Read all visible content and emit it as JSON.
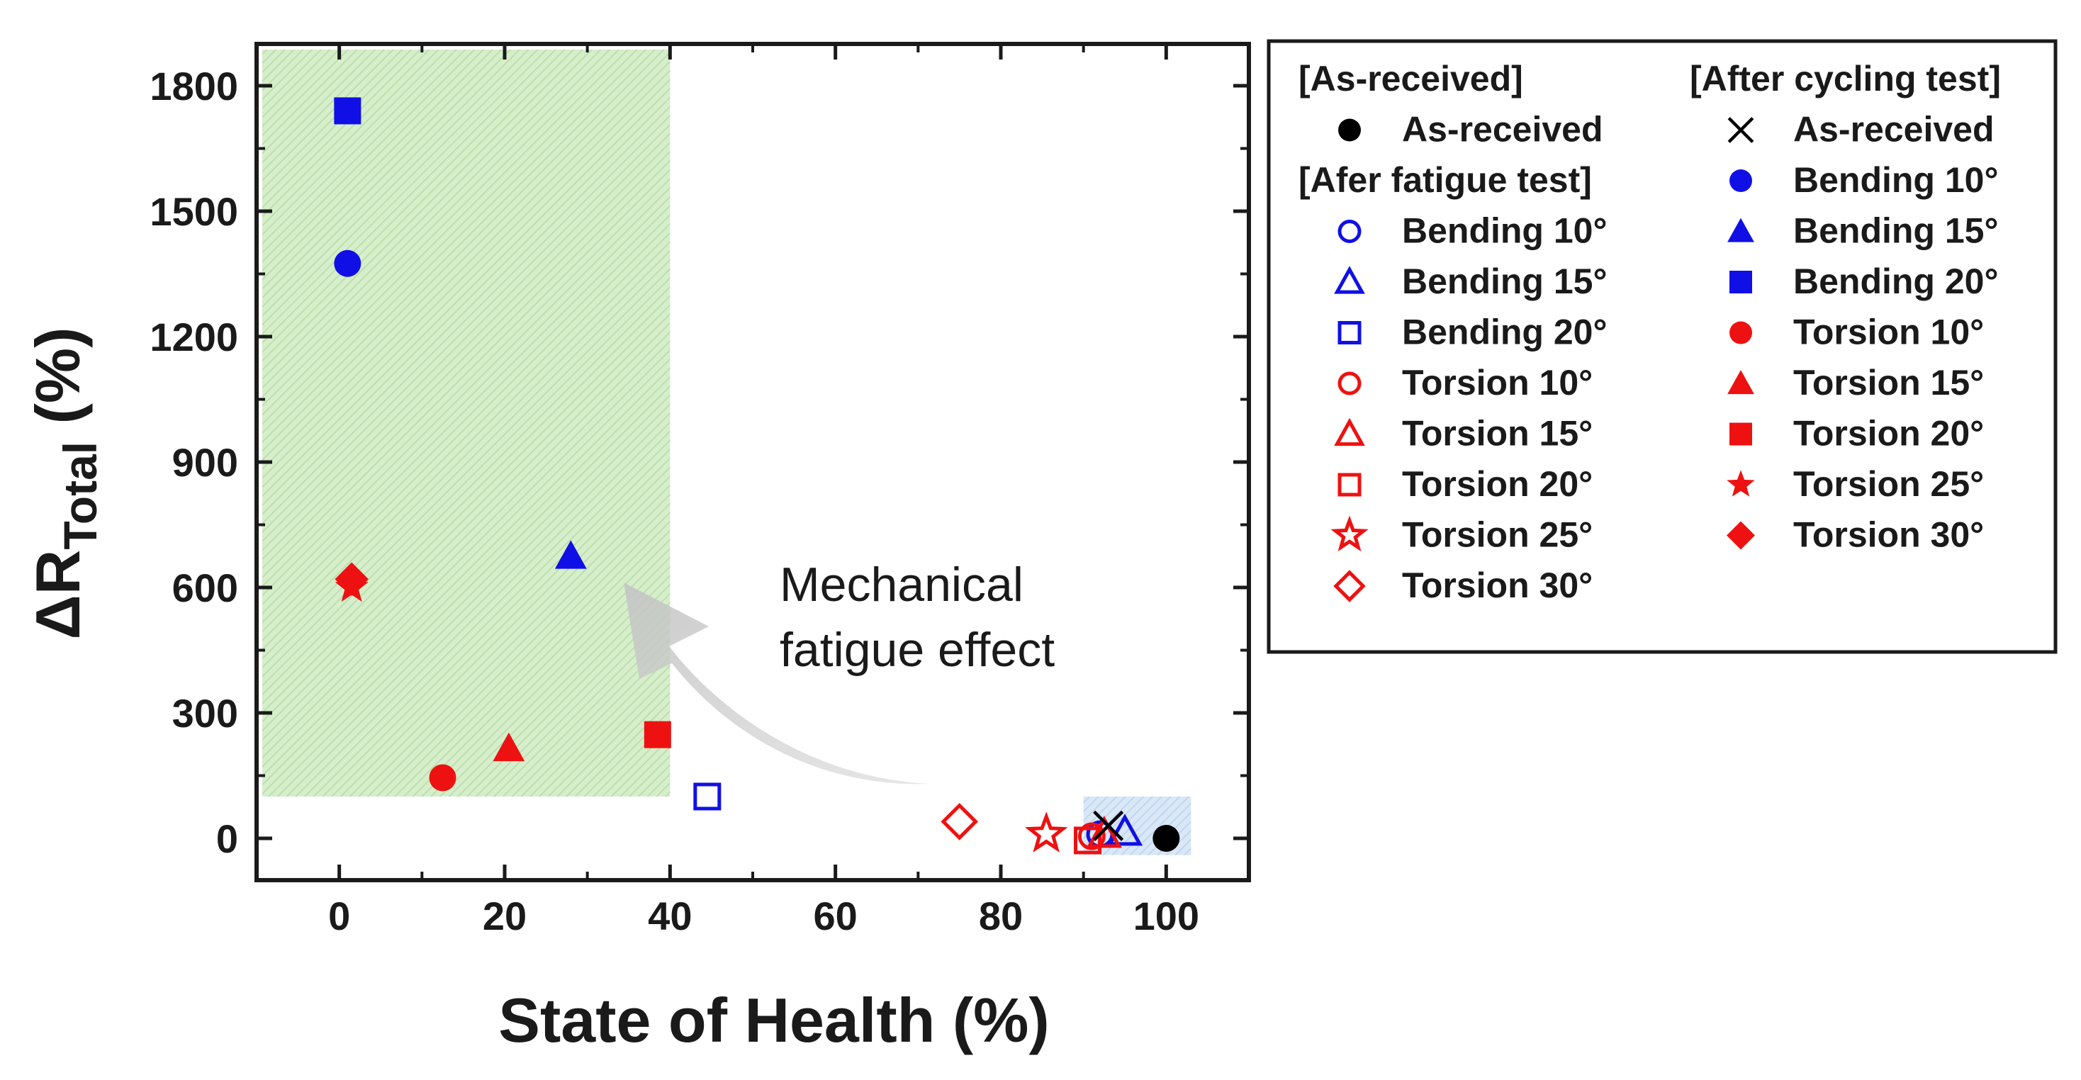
{
  "chart_data": {
    "type": "scatter",
    "xlabel": "State of Health (%)",
    "ylabel_prefix": "ΔR",
    "ylabel_subscript": "Total",
    "ylabel_suffix": " (%)",
    "xlim": [
      -10,
      110
    ],
    "ylim": [
      -100,
      1900
    ],
    "x_ticks": [
      0,
      20,
      40,
      60,
      80,
      100
    ],
    "x_tick_labels": [
      "0",
      "20",
      "40",
      "60",
      "80",
      "100"
    ],
    "y_ticks": [
      0,
      300,
      600,
      900,
      1200,
      1500,
      1800
    ],
    "y_tick_labels": [
      "0",
      "300",
      "600",
      "900",
      "1200",
      "1500",
      "1800"
    ],
    "highlight_region": {
      "x": [
        -10,
        40
      ],
      "y": [
        100,
        1900
      ]
    },
    "highlight_region_small": {
      "x": [
        90,
        103
      ],
      "y": [
        -40,
        100
      ]
    },
    "annotation": [
      "Mechanical",
      "fatigue effect"
    ],
    "colors": {
      "blue": "#1010e6",
      "red": "#ee1111",
      "black": "#000000",
      "green_fill": "#c9e8b8",
      "blue_fill": "#c9dcf2"
    },
    "series": [
      {
        "name": "As-received",
        "group": "As-received",
        "marker": "circle",
        "filled": true,
        "color": "#000000",
        "x": 100,
        "y": 0
      },
      {
        "name": "Bending 10°",
        "group": "Afer fatigue test",
        "marker": "circle",
        "filled": false,
        "color": "#1010e6",
        "x": 92,
        "y": 10
      },
      {
        "name": "Bending 15°",
        "group": "Afer fatigue test",
        "marker": "triangle",
        "filled": false,
        "color": "#1010e6",
        "x": 95,
        "y": 15
      },
      {
        "name": "Bending 20°",
        "group": "Afer fatigue test",
        "marker": "square",
        "filled": false,
        "color": "#1010e6",
        "x": 44.5,
        "y": 100
      },
      {
        "name": "Torsion 10°",
        "group": "Afer fatigue test",
        "marker": "circle",
        "filled": false,
        "color": "#ee1111",
        "x": 91,
        "y": 5
      },
      {
        "name": "Torsion 15°",
        "group": "Afer fatigue test",
        "marker": "triangle",
        "filled": false,
        "color": "#ee1111",
        "x": 92.5,
        "y": 10
      },
      {
        "name": "Torsion 20°",
        "group": "Afer fatigue test",
        "marker": "square",
        "filled": false,
        "color": "#ee1111",
        "x": 90.5,
        "y": -5
      },
      {
        "name": "Torsion 25°",
        "group": "Afer fatigue test",
        "marker": "star",
        "filled": false,
        "color": "#ee1111",
        "x": 85.5,
        "y": 10
      },
      {
        "name": "Torsion 30°",
        "group": "Afer fatigue test",
        "marker": "diamond",
        "filled": false,
        "color": "#ee1111",
        "x": 75,
        "y": 40
      },
      {
        "name": "As-received",
        "group": "After cycling test",
        "marker": "x",
        "filled": false,
        "color": "#000000",
        "x": 93,
        "y": 30
      },
      {
        "name": "Bending 10°",
        "group": "After cycling test",
        "marker": "circle",
        "filled": true,
        "color": "#1010e6",
        "x": 1,
        "y": 1375
      },
      {
        "name": "Bending 15°",
        "group": "After cycling test",
        "marker": "triangle",
        "filled": true,
        "color": "#1010e6",
        "x": 28,
        "y": 675
      },
      {
        "name": "Bending 20°",
        "group": "After cycling test",
        "marker": "square",
        "filled": true,
        "color": "#1010e6",
        "x": 1,
        "y": 1740
      },
      {
        "name": "Torsion 10°",
        "group": "After cycling test",
        "marker": "circle",
        "filled": true,
        "color": "#ee1111",
        "x": 12.5,
        "y": 145
      },
      {
        "name": "Torsion 15°",
        "group": "After cycling test",
        "marker": "triangle",
        "filled": true,
        "color": "#ee1111",
        "x": 20.5,
        "y": 215
      },
      {
        "name": "Torsion 20°",
        "group": "After cycling test",
        "marker": "square",
        "filled": true,
        "color": "#ee1111",
        "x": 38.5,
        "y": 248
      },
      {
        "name": "Torsion 25°",
        "group": "After cycling test",
        "marker": "star",
        "filled": true,
        "color": "#ee1111",
        "x": 1.5,
        "y": 600
      },
      {
        "name": "Torsion 30°",
        "group": "After cycling test",
        "marker": "diamond",
        "filled": true,
        "color": "#ee1111",
        "x": 1.5,
        "y": 620
      }
    ],
    "legend": {
      "placement": "right",
      "columns": [
        {
          "heading": "[As-received]",
          "items": [
            {
              "label": "As-received",
              "marker": "circle",
              "filled": true,
              "color": "#000000"
            }
          ],
          "subheading": "[Afer fatigue test]",
          "subitems": [
            {
              "label": "Bending 10°",
              "marker": "circle",
              "filled": false,
              "color": "#1010e6"
            },
            {
              "label": "Bending 15°",
              "marker": "triangle",
              "filled": false,
              "color": "#1010e6"
            },
            {
              "label": "Bending 20°",
              "marker": "square",
              "filled": false,
              "color": "#1010e6"
            },
            {
              "label": "Torsion 10°",
              "marker": "circle",
              "filled": false,
              "color": "#ee1111"
            },
            {
              "label": "Torsion 15°",
              "marker": "triangle",
              "filled": false,
              "color": "#ee1111"
            },
            {
              "label": "Torsion 20°",
              "marker": "square",
              "filled": false,
              "color": "#ee1111"
            },
            {
              "label": "Torsion 25°",
              "marker": "star",
              "filled": false,
              "color": "#ee1111"
            },
            {
              "label": "Torsion 30°",
              "marker": "diamond",
              "filled": false,
              "color": "#ee1111"
            }
          ]
        },
        {
          "heading": "[After cycling test]",
          "items": [
            {
              "label": "As-received",
              "marker": "x",
              "filled": false,
              "color": "#000000"
            },
            {
              "label": "Bending 10°",
              "marker": "circle",
              "filled": true,
              "color": "#1010e6"
            },
            {
              "label": "Bending 15°",
              "marker": "triangle",
              "filled": true,
              "color": "#1010e6"
            },
            {
              "label": "Bending 20°",
              "marker": "square",
              "filled": true,
              "color": "#1010e6"
            },
            {
              "label": "Torsion 10°",
              "marker": "circle",
              "filled": true,
              "color": "#ee1111"
            },
            {
              "label": "Torsion 15°",
              "marker": "triangle",
              "filled": true,
              "color": "#ee1111"
            },
            {
              "label": "Torsion 20°",
              "marker": "square",
              "filled": true,
              "color": "#ee1111"
            },
            {
              "label": "Torsion 25°",
              "marker": "star",
              "filled": true,
              "color": "#ee1111"
            },
            {
              "label": "Torsion 30°",
              "marker": "diamond",
              "filled": true,
              "color": "#ee1111"
            }
          ]
        }
      ]
    }
  }
}
